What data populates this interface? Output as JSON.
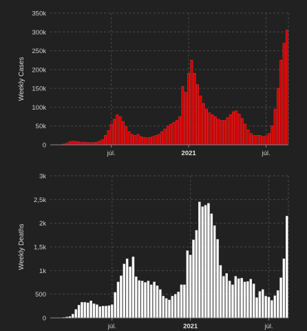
{
  "colors": {
    "background": "#212121",
    "cases": "#cc0000",
    "deaths": "#ffffff",
    "grid": "#4a4a4a"
  },
  "chart_data": [
    {
      "type": "bar",
      "ylabel": "Weekly Cases",
      "ylim": [
        0,
        350000
      ],
      "yticks": [
        {
          "value": 0,
          "label": "0"
        },
        {
          "value": 50000,
          "label": "50k"
        },
        {
          "value": 100000,
          "label": "100k"
        },
        {
          "value": 150000,
          "label": "150k"
        },
        {
          "value": 200000,
          "label": "200k"
        },
        {
          "value": 250000,
          "label": "250k"
        },
        {
          "value": 300000,
          "label": "300k"
        },
        {
          "value": 350000,
          "label": "350k"
        }
      ],
      "xticks": [
        {
          "index": 20,
          "label": "júl.",
          "bold": false
        },
        {
          "index": 46,
          "label": "2021",
          "bold": true
        },
        {
          "index": 72,
          "label": "júl.",
          "bold": false
        }
      ],
      "grid": true,
      "values": [
        0,
        0,
        0,
        0,
        2000,
        4000,
        8000,
        10000,
        9000,
        8000,
        7000,
        7000,
        6000,
        6000,
        6000,
        7000,
        10000,
        14000,
        25000,
        38000,
        55000,
        68000,
        80000,
        75000,
        62000,
        48000,
        35000,
        28000,
        25000,
        28000,
        22000,
        20000,
        19000,
        20000,
        22000,
        25000,
        28000,
        35000,
        42000,
        50000,
        55000,
        60000,
        65000,
        75000,
        155000,
        140000,
        190000,
        225000,
        190000,
        160000,
        130000,
        110000,
        95000,
        85000,
        80000,
        75000,
        68000,
        65000,
        65000,
        72000,
        80000,
        88000,
        90000,
        82000,
        70000,
        55000,
        40000,
        30000,
        25000,
        25000,
        25000,
        22000,
        24000,
        30000,
        50000,
        95000,
        150000,
        225000,
        270000,
        305000
      ]
    },
    {
      "type": "bar",
      "ylabel": "Weekly Deaths",
      "ylim": [
        0,
        3000
      ],
      "yticks": [
        {
          "value": 0,
          "label": "0"
        },
        {
          "value": 500,
          "label": "500"
        },
        {
          "value": 1000,
          "label": "1k"
        },
        {
          "value": 1500,
          "label": "1,5k"
        },
        {
          "value": 2000,
          "label": "2k"
        },
        {
          "value": 2500,
          "label": "2,5k"
        },
        {
          "value": 3000,
          "label": "3k"
        }
      ],
      "xticks": [
        {
          "index": 20,
          "label": "júl.",
          "bold": false
        },
        {
          "index": 46,
          "label": "2021",
          "bold": true
        },
        {
          "index": 72,
          "label": "júl.",
          "bold": false
        }
      ],
      "grid": true,
      "values": [
        0,
        0,
        0,
        0,
        10,
        20,
        30,
        80,
        180,
        270,
        330,
        330,
        320,
        360,
        300,
        280,
        240,
        250,
        250,
        260,
        280,
        540,
        760,
        890,
        1140,
        1250,
        1080,
        1290,
        870,
        790,
        780,
        750,
        780,
        700,
        760,
        680,
        600,
        460,
        410,
        380,
        460,
        500,
        550,
        700,
        700,
        1420,
        1330,
        1650,
        1850,
        2450,
        2350,
        2380,
        2420,
        2200,
        1950,
        1660,
        1110,
        880,
        940,
        780,
        700,
        880,
        830,
        840,
        760,
        770,
        820,
        720,
        430,
        560,
        600,
        460,
        440,
        370,
        470,
        580,
        850,
        1250,
        2150
      ]
    }
  ]
}
